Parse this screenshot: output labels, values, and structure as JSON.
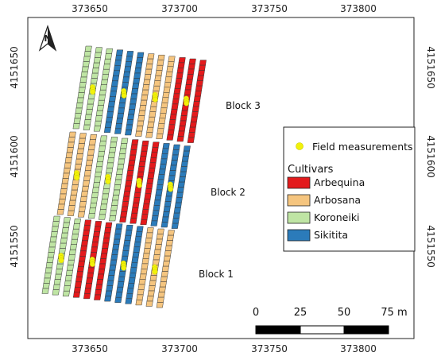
{
  "map": {
    "x_ticks": [
      "373650",
      "373700",
      "373750",
      "373800"
    ],
    "y_ticks": [
      "4151650",
      "4151600",
      "4151550"
    ],
    "north_arrow_label": "N",
    "blocks": [
      "Block 3",
      "Block 2",
      "Block 1"
    ],
    "block_rows": [
      [
        "Koroneiki",
        "Koroneiki",
        "Koroneiki",
        "Sikitita",
        "Sikitita",
        "Sikitita",
        "Arbosana",
        "Arbosana",
        "Arbosana",
        "Arbequina",
        "Arbequina",
        "Arbequina"
      ],
      [
        "Arbosana",
        "Arbosana",
        "Arbosana",
        "Koroneiki",
        "Koroneiki",
        "Koroneiki",
        "Arbequina",
        "Arbequina",
        "Arbequina",
        "Sikitita",
        "Sikitita",
        "Sikitita"
      ],
      [
        "Koroneiki",
        "Koroneiki",
        "Koroneiki",
        "Arbequina",
        "Arbequina",
        "Arbequina",
        "Sikitita",
        "Sikitita",
        "Sikitita",
        "Arbosana",
        "Arbosana",
        "Arbosana"
      ]
    ],
    "measurement_row_groups": [
      0,
      2,
      4
    ]
  },
  "legend": {
    "field_measurements": "Field measurements",
    "cultivars_title": "Cultivars",
    "items": [
      {
        "name": "Arbequina",
        "color": "#e31a1c"
      },
      {
        "name": "Arbosana",
        "color": "#f5c57f"
      },
      {
        "name": "Koroneiki",
        "color": "#bfe5a4"
      },
      {
        "name": "Sikitita",
        "color": "#2b7bba"
      }
    ],
    "measurement_color": "#f2f20a"
  },
  "scale_bar": {
    "labels": [
      "0",
      "25",
      "50",
      "75 m"
    ]
  }
}
